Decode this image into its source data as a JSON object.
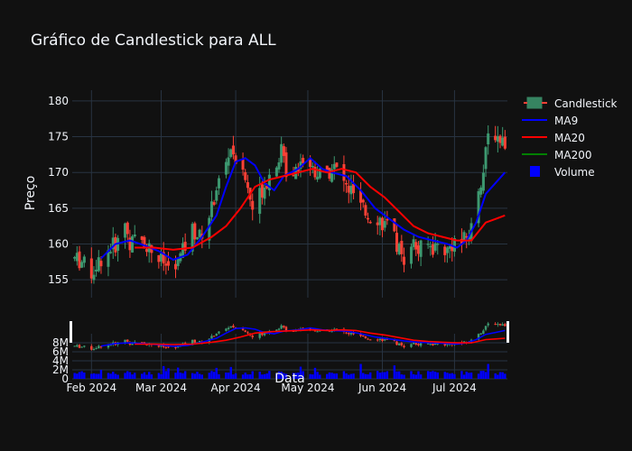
{
  "chart_data": {
    "type": "candlestick",
    "title": "Gráfico de Candlestick para ALL",
    "ylabel": "Preço",
    "xlabel": "Data",
    "ylim": [
      152.5,
      181.5
    ],
    "y_ticks": [
      155,
      160,
      165,
      170,
      175,
      180
    ],
    "volume_ylim": [
      0,
      10000000
    ],
    "volume_ticks": [
      {
        "value": 0,
        "label": "0"
      },
      {
        "value": 2000000,
        "label": "2M"
      },
      {
        "value": 4000000,
        "label": "4M"
      },
      {
        "value": 6000000,
        "label": "6M"
      },
      {
        "value": 8000000,
        "label": "8M"
      }
    ],
    "x_ticks": [
      {
        "label": "Feb 2024",
        "day": 0
      },
      {
        "label": "Mar 2024",
        "day": 29
      },
      {
        "label": "Apr 2024",
        "day": 60
      },
      {
        "label": "May 2024",
        "day": 90
      },
      {
        "label": "Jun 2024",
        "day": 121
      },
      {
        "label": "Jul 2024",
        "day": 151
      }
    ],
    "x_range_days": [
      -8,
      173
    ],
    "legend": [
      {
        "name": "Candlestick",
        "color": "#3D9970",
        "kind": "candle"
      },
      {
        "name": "MA9",
        "color": "#0000ff",
        "kind": "line"
      },
      {
        "name": "MA20",
        "color": "#ff0000",
        "kind": "line"
      },
      {
        "name": "MA200",
        "color": "#008000",
        "kind": "line"
      },
      {
        "name": "Volume",
        "color": "#0000ff",
        "kind": "bar"
      }
    ],
    "colors": {
      "up": "#3D9970",
      "down": "#FF4136",
      "ma9": "#0000ff",
      "ma20": "#ff0000",
      "volume": "#0000ff",
      "background": "#111111",
      "grid": "#283442"
    },
    "price_path": [
      [
        -7,
        158
      ],
      [
        -4,
        157.5
      ],
      [
        0,
        156
      ],
      [
        4,
        158
      ],
      [
        8,
        159.5
      ],
      [
        12,
        160.5
      ],
      [
        14,
        163
      ],
      [
        16,
        160
      ],
      [
        20,
        161
      ],
      [
        24,
        159.5
      ],
      [
        28,
        158
      ],
      [
        31,
        157
      ],
      [
        34,
        156
      ],
      [
        38,
        159
      ],
      [
        42,
        162
      ],
      [
        45,
        161
      ],
      [
        48,
        163
      ],
      [
        50,
        165
      ],
      [
        52,
        168
      ],
      [
        55,
        170
      ],
      [
        58,
        173.5
      ],
      [
        61,
        171
      ],
      [
        64,
        169
      ],
      [
        67,
        165
      ],
      [
        70,
        167
      ],
      [
        73,
        169
      ],
      [
        76,
        171
      ],
      [
        79,
        173
      ],
      [
        82,
        169
      ],
      [
        85,
        171
      ],
      [
        88,
        172
      ],
      [
        91,
        171
      ],
      [
        94,
        170
      ],
      [
        97,
        169
      ],
      [
        100,
        171
      ],
      [
        103,
        170
      ],
      [
        106,
        168
      ],
      [
        109,
        167
      ],
      [
        112,
        165
      ],
      [
        115,
        164
      ],
      [
        118,
        164
      ],
      [
        121,
        163
      ],
      [
        124,
        162
      ],
      [
        127,
        160
      ],
      [
        130,
        158
      ],
      [
        133,
        160.5
      ],
      [
        136,
        159
      ],
      [
        139,
        160
      ],
      [
        142,
        159.5
      ],
      [
        145,
        160
      ],
      [
        148,
        159
      ],
      [
        151,
        160.5
      ],
      [
        154,
        160
      ],
      [
        157,
        161.5
      ],
      [
        159,
        163
      ],
      [
        161,
        168
      ],
      [
        163,
        170
      ],
      [
        165,
        175
      ],
      [
        167,
        176
      ],
      [
        169,
        175
      ],
      [
        171,
        174.5
      ]
    ],
    "ma9": [
      [
        4,
        158
      ],
      [
        10,
        160
      ],
      [
        16,
        160.5
      ],
      [
        22,
        159.8
      ],
      [
        28,
        159
      ],
      [
        34,
        157.8
      ],
      [
        40,
        158.5
      ],
      [
        46,
        161
      ],
      [
        52,
        164
      ],
      [
        56,
        168
      ],
      [
        60,
        171.5
      ],
      [
        64,
        172
      ],
      [
        68,
        171
      ],
      [
        72,
        168.5
      ],
      [
        76,
        167.5
      ],
      [
        80,
        169.5
      ],
      [
        86,
        170.5
      ],
      [
        91,
        172
      ],
      [
        96,
        170.5
      ],
      [
        100,
        170
      ],
      [
        106,
        169.5
      ],
      [
        112,
        167.5
      ],
      [
        118,
        165
      ],
      [
        124,
        163.5
      ],
      [
        130,
        162
      ],
      [
        136,
        161
      ],
      [
        142,
        160.5
      ],
      [
        148,
        160
      ],
      [
        152,
        159.5
      ],
      [
        156,
        160.5
      ],
      [
        160,
        163
      ],
      [
        164,
        167
      ],
      [
        168,
        168.5
      ],
      [
        172,
        170
      ]
    ],
    "ma20": [
      [
        18,
        159.5
      ],
      [
        26,
        159.5
      ],
      [
        34,
        159.2
      ],
      [
        42,
        159.5
      ],
      [
        50,
        161
      ],
      [
        56,
        162.5
      ],
      [
        62,
        165
      ],
      [
        68,
        168
      ],
      [
        74,
        169
      ],
      [
        80,
        169.5
      ],
      [
        86,
        170
      ],
      [
        92,
        170.5
      ],
      [
        98,
        170
      ],
      [
        104,
        170.5
      ],
      [
        110,
        170
      ],
      [
        116,
        168
      ],
      [
        122,
        166.5
      ],
      [
        128,
        164.5
      ],
      [
        134,
        162.5
      ],
      [
        140,
        161.5
      ],
      [
        146,
        161
      ],
      [
        152,
        160.5
      ],
      [
        158,
        160.5
      ],
      [
        164,
        163
      ],
      [
        168,
        163.5
      ],
      [
        172,
        164
      ]
    ],
    "volume_events": [
      {
        "day": 12,
        "value": 4000000
      },
      {
        "day": 40,
        "value": 4300000
      },
      {
        "day": 104,
        "value": 3800000
      },
      {
        "day": 112,
        "value": 3300000
      },
      {
        "day": 165,
        "value": 3300000
      }
    ]
  }
}
